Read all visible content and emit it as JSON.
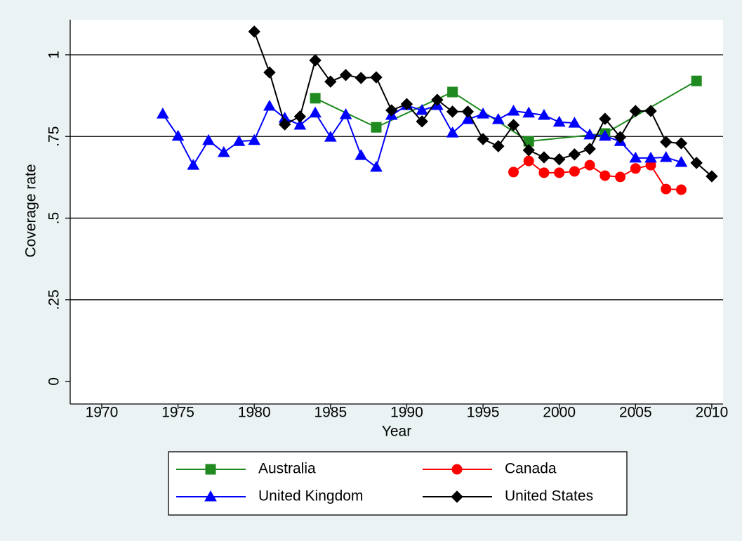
{
  "chart_data": {
    "type": "line",
    "ylabel": "Coverage rate",
    "xlabel": "Year",
    "xlim": [
      1967.93,
      2010.74
    ],
    "ylim": [
      -0.069,
      1.1075
    ],
    "xticks": [
      1970,
      1975,
      1980,
      1985,
      1990,
      1995,
      2000,
      2005,
      2010
    ],
    "yticks": [
      0,
      {
        "value": 0.25,
        "label": ".25"
      },
      {
        "value": 0.5,
        "label": ".5"
      },
      {
        "value": 0.75,
        "label": ".75"
      },
      1
    ],
    "grid": true,
    "legend": "bottom",
    "series": [
      {
        "name": "Australia",
        "color": "#1f8a1f",
        "marker": "square",
        "x": [
          1984,
          1988,
          1993,
          1998,
          2003,
          2009
        ],
        "values": [
          0.867,
          0.778,
          0.886,
          0.735,
          0.759,
          0.92
        ]
      },
      {
        "name": "Canada",
        "color": "#ff0000",
        "marker": "circle",
        "x": [
          1997,
          1998,
          1999,
          2000,
          2001,
          2002,
          2003,
          2004,
          2005,
          2006,
          2007,
          2008
        ],
        "values": [
          0.641,
          0.675,
          0.639,
          0.639,
          0.643,
          0.662,
          0.63,
          0.626,
          0.652,
          0.662,
          0.589,
          0.587
        ]
      },
      {
        "name": "United Kingdom",
        "color": "#0000ff",
        "marker": "triangle",
        "x": [
          1974,
          1975,
          1976,
          1977,
          1978,
          1979,
          1980,
          1981,
          1982,
          1983,
          1984,
          1985,
          1986,
          1987,
          1988,
          1989,
          1990,
          1991,
          1992,
          1993,
          1994,
          1995,
          1996,
          1997,
          1998,
          1999,
          2000,
          2001,
          2002,
          2003,
          2004,
          2005,
          2006,
          2007,
          2008
        ],
        "values": [
          0.819,
          0.751,
          0.662,
          0.738,
          0.701,
          0.735,
          0.738,
          0.843,
          0.806,
          0.785,
          0.822,
          0.748,
          0.817,
          0.692,
          0.656,
          0.815,
          0.845,
          0.83,
          0.845,
          0.761,
          0.802,
          0.819,
          0.802,
          0.828,
          0.822,
          0.815,
          0.794,
          0.791,
          0.755,
          0.751,
          0.735,
          0.684,
          0.684,
          0.686,
          0.671
        ]
      },
      {
        "name": "United States",
        "color": "#000000",
        "marker": "diamond",
        "x": [
          1980,
          1981,
          1982,
          1983,
          1984,
          1985,
          1986,
          1987,
          1988,
          1989,
          1990,
          1991,
          1992,
          1993,
          1994,
          1995,
          1996,
          1997,
          1998,
          1999,
          2000,
          2001,
          2002,
          2003,
          2004,
          2005,
          2006,
          2007,
          2008,
          2009,
          2010
        ],
        "values": [
          1.071,
          0.946,
          0.787,
          0.811,
          0.983,
          0.918,
          0.938,
          0.929,
          0.931,
          0.83,
          0.849,
          0.796,
          0.862,
          0.826,
          0.826,
          0.742,
          0.72,
          0.785,
          0.708,
          0.686,
          0.68,
          0.695,
          0.712,
          0.804,
          0.748,
          0.828,
          0.828,
          0.733,
          0.729,
          0.669,
          0.628
        ]
      }
    ]
  }
}
